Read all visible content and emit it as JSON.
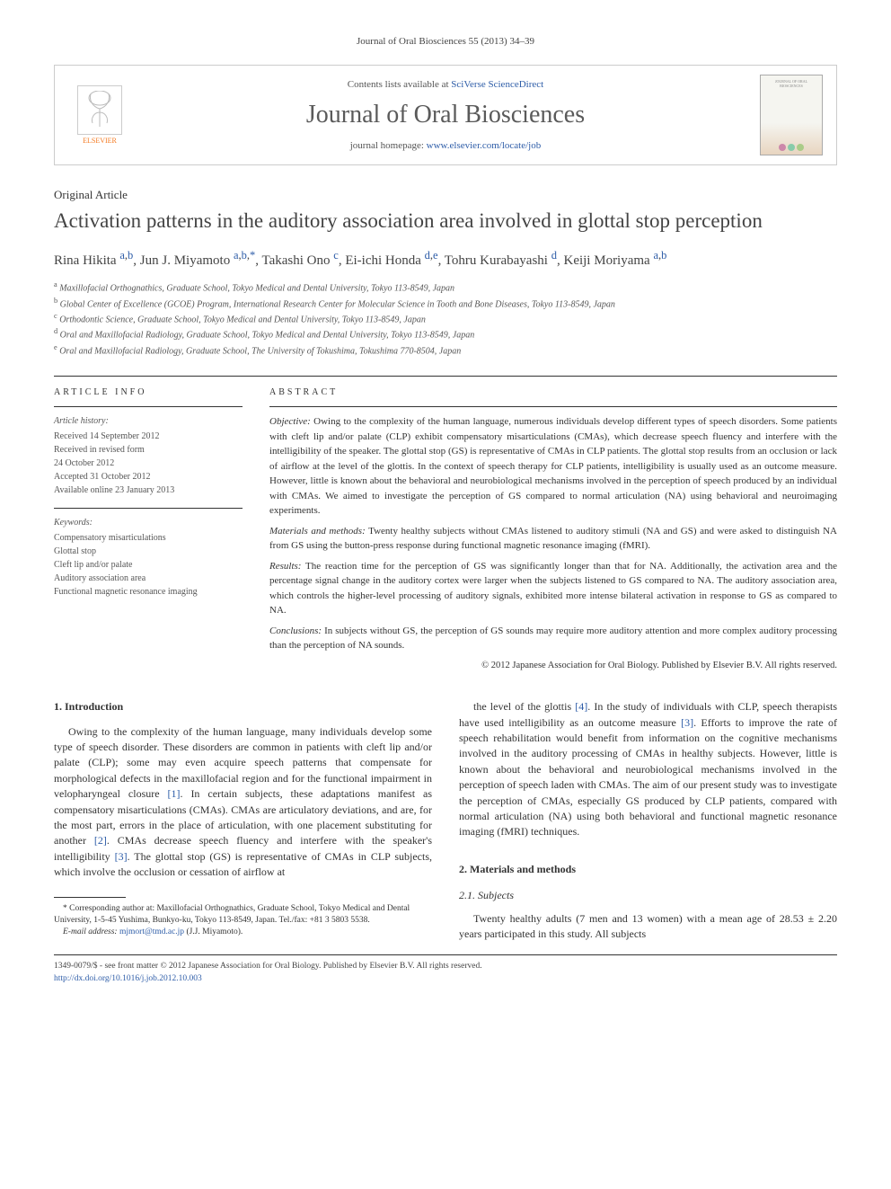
{
  "citation": "Journal of Oral Biosciences 55 (2013) 34–39",
  "masthead": {
    "contents_prefix": "Contents lists available at ",
    "contents_link": "SciVerse ScienceDirect",
    "journal_name": "Journal of Oral Biosciences",
    "homepage_prefix": "journal homepage: ",
    "homepage_link": "www.elsevier.com/locate/job",
    "publisher": "ELSEVIER"
  },
  "article_type": "Original Article",
  "title": "Activation patterns in the auditory association area involved in glottal stop perception",
  "authors_html": "Rina Hikita <sup><a href=\"#\">a</a>,<a href=\"#\">b</a></sup>, Jun J. Miyamoto <sup><a href=\"#\">a</a>,<a href=\"#\">b</a>,<a href=\"#\">*</a></sup>, Takashi Ono <sup><a href=\"#\">c</a></sup>, Ei-ichi Honda <sup><a href=\"#\">d</a>,<a href=\"#\">e</a></sup>, Tohru Kurabayashi <sup><a href=\"#\">d</a></sup>, Keiji Moriyama <sup><a href=\"#\">a</a>,<a href=\"#\">b</a></sup>",
  "affiliations": [
    "a Maxillofacial Orthognathics, Graduate School, Tokyo Medical and Dental University, Tokyo 113-8549, Japan",
    "b Global Center of Excellence (GCOE) Program, International Research Center for Molecular Science in Tooth and Bone Diseases, Tokyo 113-8549, Japan",
    "c Orthodontic Science, Graduate School, Tokyo Medical and Dental University, Tokyo 113-8549, Japan",
    "d Oral and Maxillofacial Radiology, Graduate School, Tokyo Medical and Dental University, Tokyo 113-8549, Japan",
    "e Oral and Maxillofacial Radiology, Graduate School, The University of Tokushima, Tokushima 770-8504, Japan"
  ],
  "article_info": {
    "label": "ARTICLE INFO",
    "history_heading": "Article history:",
    "history": [
      "Received 14 September 2012",
      "Received in revised form",
      "24 October 2012",
      "Accepted 31 October 2012",
      "Available online 23 January 2013"
    ],
    "keywords_heading": "Keywords:",
    "keywords": [
      "Compensatory misarticulations",
      "Glottal stop",
      "Cleft lip and/or palate",
      "Auditory association area",
      "Functional magnetic resonance imaging"
    ]
  },
  "abstract": {
    "label": "ABSTRACT",
    "sections": {
      "objective": "Owing to the complexity of the human language, numerous individuals develop different types of speech disorders. Some patients with cleft lip and/or palate (CLP) exhibit compensatory misarticulations (CMAs), which decrease speech fluency and interfere with the intelligibility of the speaker. The glottal stop (GS) is representative of CMAs in CLP patients. The glottal stop results from an occlusion or lack of airflow at the level of the glottis. In the context of speech therapy for CLP patients, intelligibility is usually used as an outcome measure. However, little is known about the behavioral and neurobiological mechanisms involved in the perception of speech produced by an individual with CMAs. We aimed to investigate the perception of GS compared to normal articulation (NA) using behavioral and neuroimaging experiments.",
      "methods": "Twenty healthy subjects without CMAs listened to auditory stimuli (NA and GS) and were asked to distinguish NA from GS using the button-press response during functional magnetic resonance imaging (fMRI).",
      "results": "The reaction time for the perception of GS was significantly longer than that for NA. Additionally, the activation area and the percentage signal change in the auditory cortex were larger when the subjects listened to GS compared to NA. The auditory association area, which controls the higher-level processing of auditory signals, exhibited more intense bilateral activation in response to GS as compared to NA.",
      "conclusions": "In subjects without GS, the perception of GS sounds may require more auditory attention and more complex auditory processing than the perception of NA sounds."
    },
    "copyright": "© 2012 Japanese Association for Oral Biology. Published by Elsevier B.V. All rights reserved."
  },
  "body": {
    "intro_heading": "1.  Introduction",
    "intro_p1": "Owing to the complexity of the human language, many individuals develop some type of speech disorder. These disorders are common in patients with cleft lip and/or palate (CLP); some may even acquire speech patterns that compensate for morphological defects in the maxillofacial region and for the functional impairment in velopharyngeal closure [1]. In certain subjects, these adaptations manifest as compensatory misarticulations (CMAs). CMAs are articulatory deviations, and are, for the most part, errors in the place of articulation, with one placement substituting for another [2]. CMAs decrease speech fluency and interfere with the speaker's intelligibility [3]. The glottal stop (GS) is representative of CMAs in CLP subjects, which involve the occlusion or cessation of airflow at",
    "intro_p2": "the level of the glottis [4]. In the study of individuals with CLP, speech therapists have used intelligibility as an outcome measure [3]. Efforts to improve the rate of speech rehabilitation would benefit from information on the cognitive mechanisms involved in the auditory processing of CMAs in healthy subjects. However, little is known about the behavioral and neurobiological mechanisms involved in the perception of speech laden with CMAs. The aim of our present study was to investigate the perception of CMAs, especially GS produced by CLP patients, compared with normal articulation (NA) using both behavioral and functional magnetic resonance imaging (fMRI) techniques.",
    "methods_heading": "2.  Materials and methods",
    "subjects_heading": "2.1.  Subjects",
    "subjects_p": "Twenty healthy adults (7 men and 13 women) with a mean age of 28.53 ± 2.20 years participated in this study. All subjects"
  },
  "footnotes": {
    "corresp": "* Corresponding author at: Maxillofacial Orthognathics, Graduate School, Tokyo Medical and Dental University, 1-5-45 Yushima, Bunkyo-ku, Tokyo 113-8549, Japan. Tel./fax: +81 3 5803 5538.",
    "email_label": "E-mail address: ",
    "email": "mjmort@tmd.ac.jp",
    "email_name": " (J.J. Miyamoto)."
  },
  "footer": {
    "line1": "1349-0079/$ - see front matter © 2012 Japanese Association for Oral Biology. Published by Elsevier B.V. All rights reserved.",
    "doi": "http://dx.doi.org/10.1016/j.job.2012.10.003"
  },
  "colors": {
    "link": "#2e5da8",
    "elsevier_orange": "#f47920",
    "text": "#333333",
    "muted": "#555555",
    "rule": "#333333"
  },
  "typography": {
    "body_pt": 12,
    "title_pt": 23,
    "journal_name_pt": 28,
    "small_pt": 10
  }
}
